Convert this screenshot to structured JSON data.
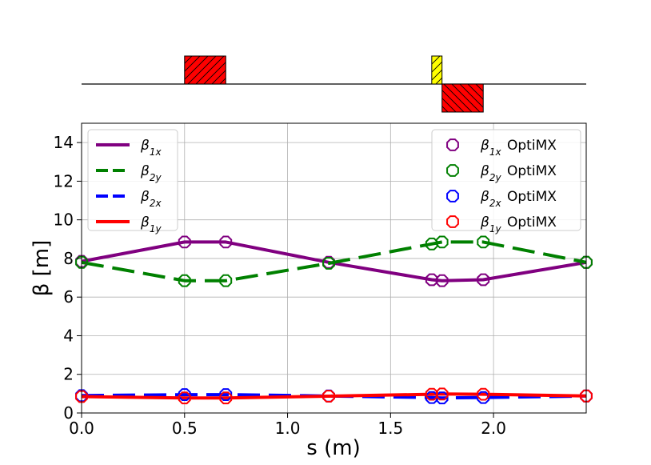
{
  "chart_data": {
    "type": "line",
    "xlabel": "s (m)",
    "ylabel": "β [m]",
    "xlim": [
      0.0,
      2.45
    ],
    "ylim": [
      0,
      15
    ],
    "xticks": [
      "0.0",
      "0.5",
      "1.0",
      "1.5",
      "2.0"
    ],
    "yticks": [
      "0",
      "2",
      "4",
      "6",
      "8",
      "10",
      "12",
      "14"
    ],
    "grid": true,
    "series": [
      {
        "name": "β1x",
        "base": "β",
        "sub": "1x",
        "color": "#800080",
        "style": "solid",
        "x": [
          0.0,
          0.5,
          0.7,
          1.2,
          1.7,
          1.75,
          1.95,
          2.45
        ],
        "y": [
          7.85,
          8.85,
          8.85,
          7.8,
          6.9,
          6.85,
          6.9,
          7.8
        ]
      },
      {
        "name": "β2y",
        "base": "β",
        "sub": "2y",
        "color": "#008000",
        "style": "dashed",
        "x": [
          0.0,
          0.5,
          0.7,
          1.2,
          1.7,
          1.75,
          1.95,
          2.45
        ],
        "y": [
          7.8,
          6.85,
          6.85,
          7.75,
          8.75,
          8.85,
          8.85,
          7.8
        ]
      },
      {
        "name": "β2x",
        "base": "β",
        "sub": "2x",
        "color": "#0000ff",
        "style": "dashed",
        "x": [
          0.0,
          0.5,
          0.7,
          1.2,
          1.7,
          1.75,
          1.95,
          2.45
        ],
        "y": [
          0.9,
          0.95,
          0.95,
          0.88,
          0.8,
          0.78,
          0.8,
          0.88
        ]
      },
      {
        "name": "β1y",
        "base": "β",
        "sub": "1y",
        "color": "#ff0000",
        "style": "solid",
        "x": [
          0.0,
          0.5,
          0.7,
          1.2,
          1.7,
          1.75,
          1.95,
          2.45
        ],
        "y": [
          0.85,
          0.78,
          0.78,
          0.87,
          0.97,
          0.98,
          0.97,
          0.88
        ]
      }
    ],
    "markers": [
      {
        "name": "β1x OptiMX",
        "base": "β",
        "sub": "1x",
        "suffix": " OptiMX",
        "color": "#800080",
        "x": [
          0.0,
          0.5,
          0.7,
          1.2,
          1.7,
          1.75,
          1.95,
          2.45
        ],
        "y": [
          7.85,
          8.85,
          8.85,
          7.8,
          6.9,
          6.85,
          6.9,
          7.8
        ]
      },
      {
        "name": "β2y OptiMX",
        "base": "β",
        "sub": "2y",
        "suffix": " OptiMX",
        "color": "#008000",
        "x": [
          0.0,
          0.5,
          0.7,
          1.2,
          1.7,
          1.75,
          1.95,
          2.45
        ],
        "y": [
          7.8,
          6.85,
          6.85,
          7.75,
          8.75,
          8.85,
          8.85,
          7.8
        ]
      },
      {
        "name": "β2x OptiMX",
        "base": "β",
        "sub": "2x",
        "suffix": " OptiMX",
        "color": "#0000ff",
        "x": [
          0.0,
          0.5,
          0.7,
          1.2,
          1.7,
          1.75,
          1.95,
          2.45
        ],
        "y": [
          0.9,
          0.95,
          0.95,
          0.88,
          0.8,
          0.78,
          0.8,
          0.88
        ]
      },
      {
        "name": "β1y OptiMX",
        "base": "β",
        "sub": "1y",
        "suffix": " OptiMX",
        "color": "#ff0000",
        "x": [
          0.0,
          0.5,
          0.7,
          1.2,
          1.7,
          1.75,
          1.95,
          2.45
        ],
        "y": [
          0.85,
          0.78,
          0.78,
          0.87,
          0.97,
          0.98,
          0.97,
          0.88
        ]
      }
    ],
    "legend_left": "upper-left",
    "legend_right": "upper-right",
    "lattice": {
      "elements": [
        {
          "type": "quadrupole",
          "s_start": 0.5,
          "s_end": 0.7,
          "polarity": "focusing",
          "color": "#ff0000"
        },
        {
          "type": "sextupole",
          "s_start": 1.7,
          "s_end": 1.75,
          "polarity": "focusing",
          "color": "#ffff00"
        },
        {
          "type": "quadrupole",
          "s_start": 1.75,
          "s_end": 1.95,
          "polarity": "defocusing",
          "color": "#ff0000"
        }
      ]
    }
  }
}
